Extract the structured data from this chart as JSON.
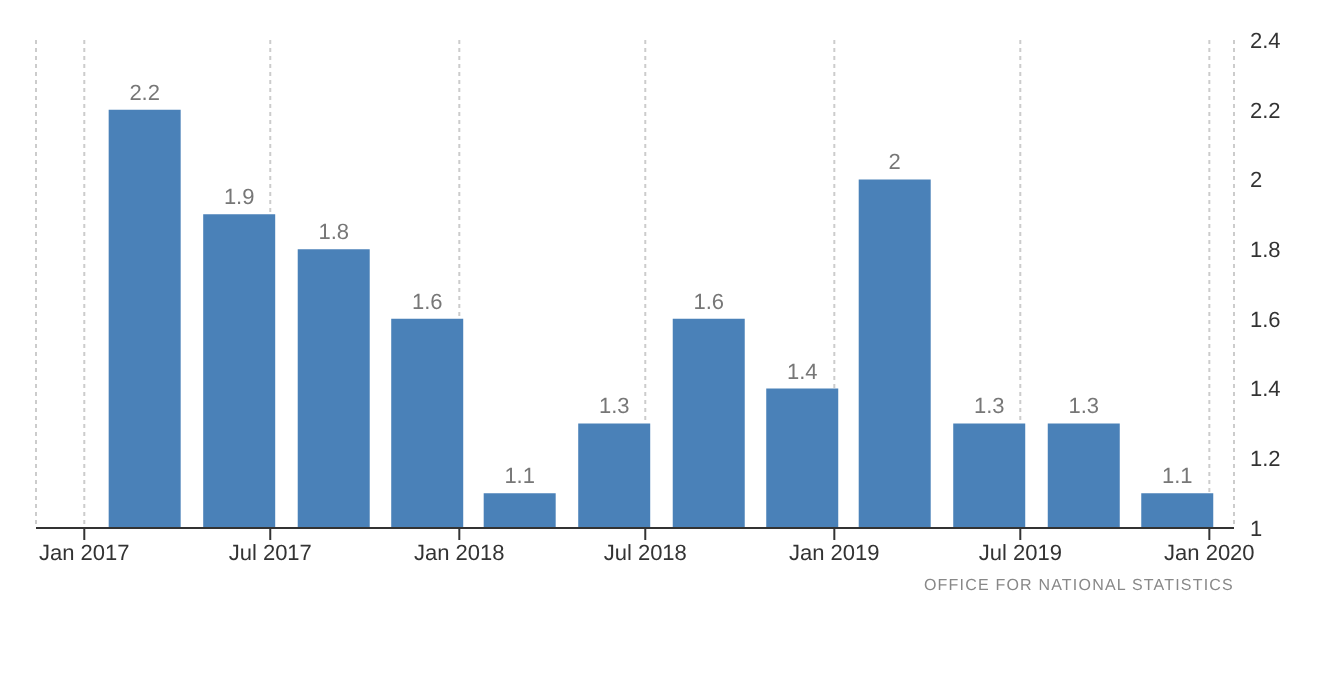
{
  "chart_data": {
    "type": "bar",
    "x": [
      "2017-03",
      "2017-06",
      "2017-09",
      "2017-12",
      "2018-03",
      "2018-06",
      "2018-09",
      "2018-12",
      "2019-03",
      "2019-06",
      "2019-09",
      "2019-12"
    ],
    "values": [
      2.2,
      1.9,
      1.8,
      1.6,
      1.1,
      1.3,
      1.6,
      1.4,
      2,
      1.3,
      1.3,
      1.1
    ],
    "color": "#4a81b8",
    "data_labels": true,
    "xlim": [
      "2016-11-15",
      "2020-01-25"
    ],
    "xticks": [
      {
        "value": "2017-01",
        "label": "Jan 2017"
      },
      {
        "value": "2017-07",
        "label": "Jul 2017"
      },
      {
        "value": "2018-01",
        "label": "Jan 2018"
      },
      {
        "value": "2018-07",
        "label": "Jul 2018"
      },
      {
        "value": "2019-01",
        "label": "Jan 2019"
      },
      {
        "value": "2019-07",
        "label": "Jul 2019"
      },
      {
        "value": "2020-01",
        "label": "Jan 2020"
      }
    ],
    "ylim": [
      1,
      2.4
    ],
    "yticks": [
      1,
      1.2,
      1.4,
      1.6,
      1.8,
      2,
      2.2,
      2.4
    ],
    "grid": "x",
    "annotations": [
      "OFFICE FOR NATIONAL STATISTICS"
    ]
  }
}
